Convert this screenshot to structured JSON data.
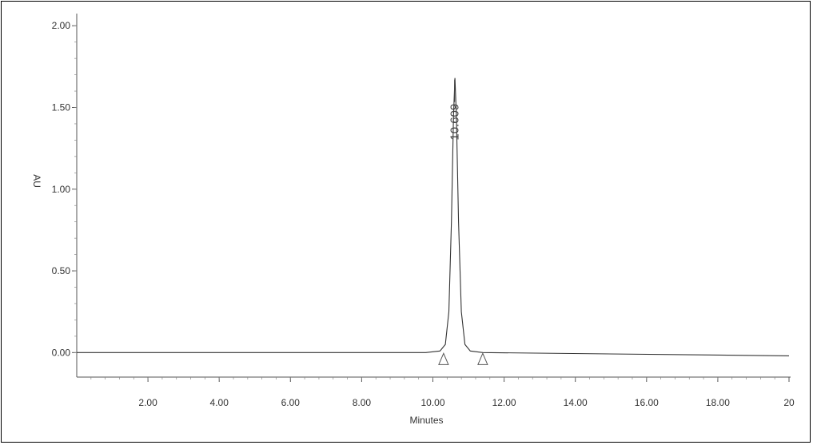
{
  "chart_data": {
    "type": "line",
    "title": "",
    "xlabel": "Minutes",
    "ylabel": "AU",
    "xlim": [
      0,
      20
    ],
    "ylim": [
      -0.15,
      2.05
    ],
    "x_ticks": [
      2,
      4,
      6,
      8,
      10,
      12,
      14,
      16,
      18,
      20
    ],
    "x_tick_labels": [
      "2.00",
      "4.00",
      "6.00",
      "8.00",
      "10.00",
      "12.00",
      "14.00",
      "16.00",
      "18.00",
      "20"
    ],
    "y_ticks": [
      0,
      0.5,
      1,
      1.5,
      2
    ],
    "y_tick_labels": [
      "0.00",
      "0.50",
      "1.00",
      "1.50",
      "2.00"
    ],
    "grid": false,
    "series": [
      {
        "x": [
          0,
          9.8,
          10.2,
          10.35,
          10.45,
          10.52,
          10.58,
          10.62,
          10.66,
          10.72,
          10.8,
          10.9,
          11.05,
          11.4,
          20
        ],
        "y": [
          0,
          0,
          0.01,
          0.05,
          0.25,
          0.8,
          1.45,
          1.68,
          1.45,
          0.8,
          0.25,
          0.05,
          0.01,
          0,
          -0.02
        ]
      }
    ],
    "annotations": [
      {
        "text": "10.609",
        "x": 10.609,
        "y": 1.68
      }
    ],
    "integration_markers": [
      {
        "x": 10.3,
        "y": 0
      },
      {
        "x": 11.4,
        "y": 0
      }
    ]
  }
}
